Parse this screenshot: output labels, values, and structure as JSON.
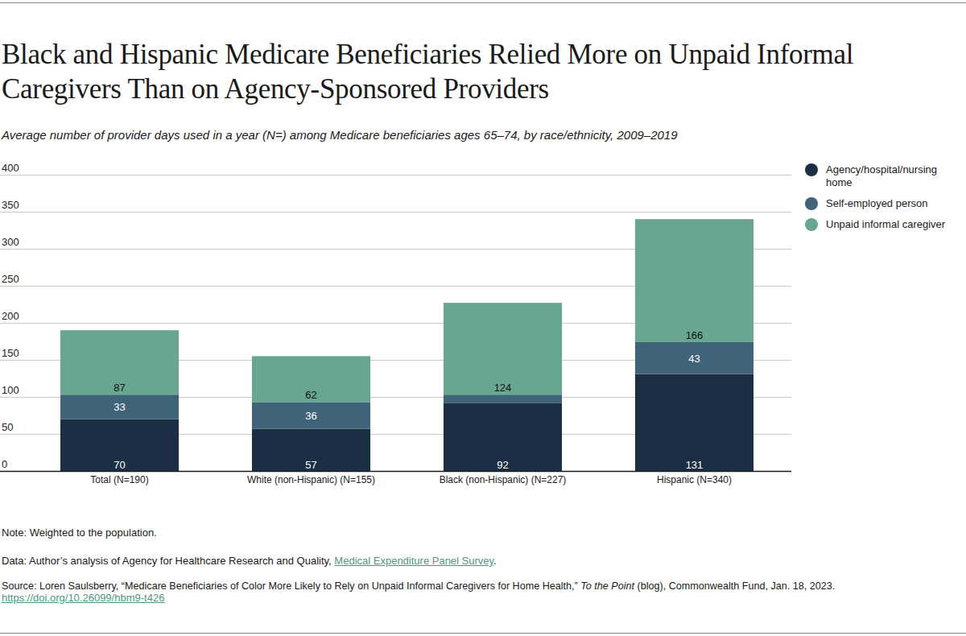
{
  "chart_data": {
    "type": "bar",
    "title": "Black and Hispanic Medicare Beneficiaries Relied More on Unpaid Informal Caregivers Than on Agency-Sponsored Providers",
    "subtitle": "Average number of provider days used in a year (N=) among Medicare beneficiaries ages 65–74, by race/ethnicity, 2009–2019",
    "categories": [
      "Total (N=190)",
      "White (non-Hispanic) (N=155)",
      "Black (non-Hispanic) (N=227)",
      "Hispanic (N=340)"
    ],
    "series": [
      {
        "name": "Agency/hospital/nursing home",
        "color": "#1a2e44",
        "values": [
          70,
          57,
          92,
          131
        ]
      },
      {
        "name": "Self-employed person",
        "color": "#3f6479",
        "values": [
          33,
          36,
          11,
          43
        ],
        "value_labels": [
          "33",
          "36",
          null,
          "43"
        ]
      },
      {
        "name": "Unpaid informal caregiver",
        "color": "#67a791",
        "values": [
          87,
          62,
          124,
          166
        ]
      }
    ],
    "ylim": [
      0,
      400
    ],
    "yticks": [
      0,
      50,
      100,
      150,
      200,
      250,
      300,
      350,
      400
    ],
    "grid": true,
    "stacked": true,
    "data_labels": true,
    "legend": "right",
    "note": "Note: Weighted to the population.",
    "data_source": {
      "prefix": "Data: Author’s analysis of Agency for Healthcare Research and Quality, ",
      "link": "Medical Expenditure Panel Survey",
      "suffix": "."
    },
    "source": {
      "prefix": "Source: Loren Saulsberry, “Medicare Beneficiaries of Color More Likely to Rely on Unpaid Informal Caregivers for Home Health,” ",
      "italic": "To the Point",
      "suffix": " (blog), Commonwealth Fund, Jan. 18, 2023.",
      "url": "https://doi.org/10.26099/hbm9-t426"
    }
  }
}
